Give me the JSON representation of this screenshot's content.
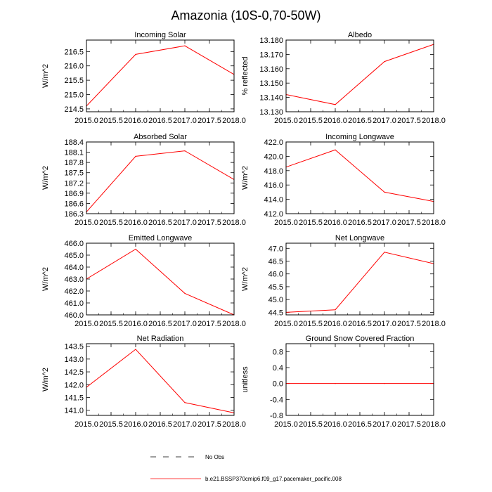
{
  "title": "Amazonia (10S-0,70-50W)",
  "chart_data": [
    {
      "type": "line",
      "title": "Incoming Solar",
      "ylabel": "W/m^2",
      "x": [
        2015.0,
        2016.0,
        2017.0,
        2018.0
      ],
      "values": [
        214.6,
        216.4,
        216.7,
        215.7
      ],
      "xlim": [
        2015.0,
        2018.0
      ],
      "ylim": [
        214.4,
        216.9
      ],
      "xticks": [
        "2015.0",
        "2015.5",
        "2016.0",
        "2016.5",
        "2017.0",
        "2017.5",
        "2018.0"
      ],
      "yticks": [
        "214.5",
        "215.0",
        "215.5",
        "216.0",
        "216.5"
      ]
    },
    {
      "type": "line",
      "title": "Albedo",
      "ylabel": "% reflected",
      "x": [
        2015.0,
        2016.0,
        2017.0,
        2018.0
      ],
      "values": [
        13.142,
        13.135,
        13.165,
        13.177
      ],
      "xlim": [
        2015.0,
        2018.0
      ],
      "ylim": [
        13.13,
        13.18
      ],
      "xticks": [
        "2015.0",
        "2015.5",
        "2016.0",
        "2016.5",
        "2017.0",
        "2017.5",
        "2018.0"
      ],
      "yticks": [
        "13.130",
        "13.140",
        "13.150",
        "13.160",
        "13.170",
        "13.180"
      ]
    },
    {
      "type": "line",
      "title": "Absorbed Solar",
      "ylabel": "W/m^2",
      "x": [
        2015.0,
        2016.0,
        2017.0,
        2018.0
      ],
      "values": [
        186.35,
        187.98,
        188.14,
        187.3
      ],
      "xlim": [
        2015.0,
        2018.0
      ],
      "ylim": [
        186.3,
        188.4
      ],
      "xticks": [
        "2015.0",
        "2015.5",
        "2016.0",
        "2016.5",
        "2017.0",
        "2017.5",
        "2018.0"
      ],
      "yticks": [
        "186.3",
        "186.6",
        "186.9",
        "187.2",
        "187.5",
        "187.8",
        "188.1",
        "188.4"
      ]
    },
    {
      "type": "line",
      "title": "Incoming Longwave",
      "ylabel": "W/m^2",
      "x": [
        2015.0,
        2016.0,
        2017.0,
        2018.0
      ],
      "values": [
        418.5,
        420.9,
        415.0,
        413.7
      ],
      "xlim": [
        2015.0,
        2018.0
      ],
      "ylim": [
        412.0,
        422.0
      ],
      "xticks": [
        "2015.0",
        "2015.5",
        "2016.0",
        "2016.5",
        "2017.0",
        "2017.5",
        "2018.0"
      ],
      "yticks": [
        "412.0",
        "414.0",
        "416.0",
        "418.0",
        "420.0",
        "422.0"
      ]
    },
    {
      "type": "line",
      "title": "Emitted Longwave",
      "ylabel": "W/m^2",
      "x": [
        2015.0,
        2016.0,
        2017.0,
        2018.0
      ],
      "values": [
        463.0,
        465.5,
        461.8,
        460.0
      ],
      "xlim": [
        2015.0,
        2018.0
      ],
      "ylim": [
        460.0,
        466.0
      ],
      "xticks": [
        "2015.0",
        "2015.5",
        "2016.0",
        "2016.5",
        "2017.0",
        "2017.5",
        "2018.0"
      ],
      "yticks": [
        "460.0",
        "461.0",
        "462.0",
        "463.0",
        "464.0",
        "465.0",
        "466.0"
      ]
    },
    {
      "type": "line",
      "title": "Net Longwave",
      "ylabel": "W/m^2",
      "x": [
        2015.0,
        2016.0,
        2017.0,
        2018.0
      ],
      "values": [
        44.5,
        44.6,
        46.85,
        46.4
      ],
      "xlim": [
        2015.0,
        2018.0
      ],
      "ylim": [
        44.4,
        47.2
      ],
      "xticks": [
        "2015.0",
        "2015.5",
        "2016.0",
        "2016.5",
        "2017.0",
        "2017.5",
        "2018.0"
      ],
      "yticks": [
        "44.5",
        "45.0",
        "45.5",
        "46.0",
        "46.5",
        "47.0"
      ]
    },
    {
      "type": "line",
      "title": "Net Radiation",
      "ylabel": "W/m^2",
      "x": [
        2015.0,
        2016.0,
        2017.0,
        2018.0
      ],
      "values": [
        141.9,
        143.38,
        141.3,
        140.9
      ],
      "xlim": [
        2015.0,
        2018.0
      ],
      "ylim": [
        140.8,
        143.6
      ],
      "xticks": [
        "2015.0",
        "2015.5",
        "2016.0",
        "2016.5",
        "2017.0",
        "2017.5",
        "2018.0"
      ],
      "yticks": [
        "141.0",
        "141.5",
        "142.0",
        "142.5",
        "143.0",
        "143.5"
      ]
    },
    {
      "type": "line",
      "title": "Ground Snow Covered Fraction",
      "ylabel": "unitless",
      "x": [
        2015.0,
        2016.0,
        2017.0,
        2018.0
      ],
      "values": [
        0.0,
        0.0,
        0.0,
        0.0
      ],
      "xlim": [
        2015.0,
        2018.0
      ],
      "ylim": [
        -0.8,
        1.0
      ],
      "xticks": [
        "2015.0",
        "2015.5",
        "2016.0",
        "2016.5",
        "2017.0",
        "2017.5",
        "2018.0"
      ],
      "yticks": [
        "-0.8",
        "-0.4",
        "0.0",
        "0.4",
        "0.8"
      ]
    }
  ],
  "legend": {
    "obs_label": "No Obs",
    "model_label": "b.e21.BSSP370cmip6.f09_g17.pacemaker_pacific.008"
  },
  "colors": {
    "line": "#ff0000",
    "axis": "#000000"
  }
}
